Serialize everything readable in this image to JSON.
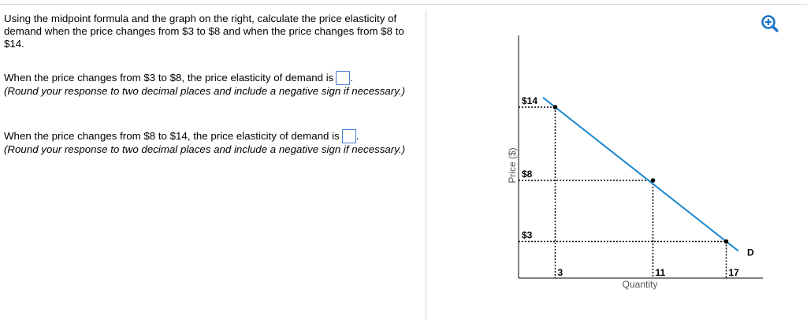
{
  "question": {
    "intro": "Using the midpoint formula and the graph on the right, calculate the price elasticity of demand when the price changes from $3 to $8 and when the price changes from $8 to $14.",
    "part1": {
      "text": "When the price changes from $3 to $8, the price elasticity of demand is",
      "answer_value": "",
      "suffix": ".",
      "hint": "(Round your response to two decimal places and include a negative sign if necessary.)"
    },
    "part2": {
      "text": "When the price changes from $8 to $14, the price elasticity of demand is",
      "answer_value": "",
      "suffix": ".",
      "hint": "(Round your response to two decimal places and include a negative sign if necessary.)"
    }
  },
  "toolbar": {
    "zoom_icon": "zoom-in-magnifier-icon",
    "accent": "#1a73c8"
  },
  "graph": {
    "ylabel": "Price ($)",
    "xlabel": "Quantity",
    "curve_label": "D",
    "curve_color": "#1a87cf",
    "price_labels": [
      "$14",
      "$8",
      "$3"
    ],
    "quantity_labels": [
      "3",
      "11",
      "17"
    ],
    "points": [
      {
        "q": 3,
        "p": 14
      },
      {
        "q": 11,
        "p": 8
      },
      {
        "q": 17,
        "p": 3
      }
    ],
    "curve_extent_q": [
      2,
      18
    ]
  }
}
